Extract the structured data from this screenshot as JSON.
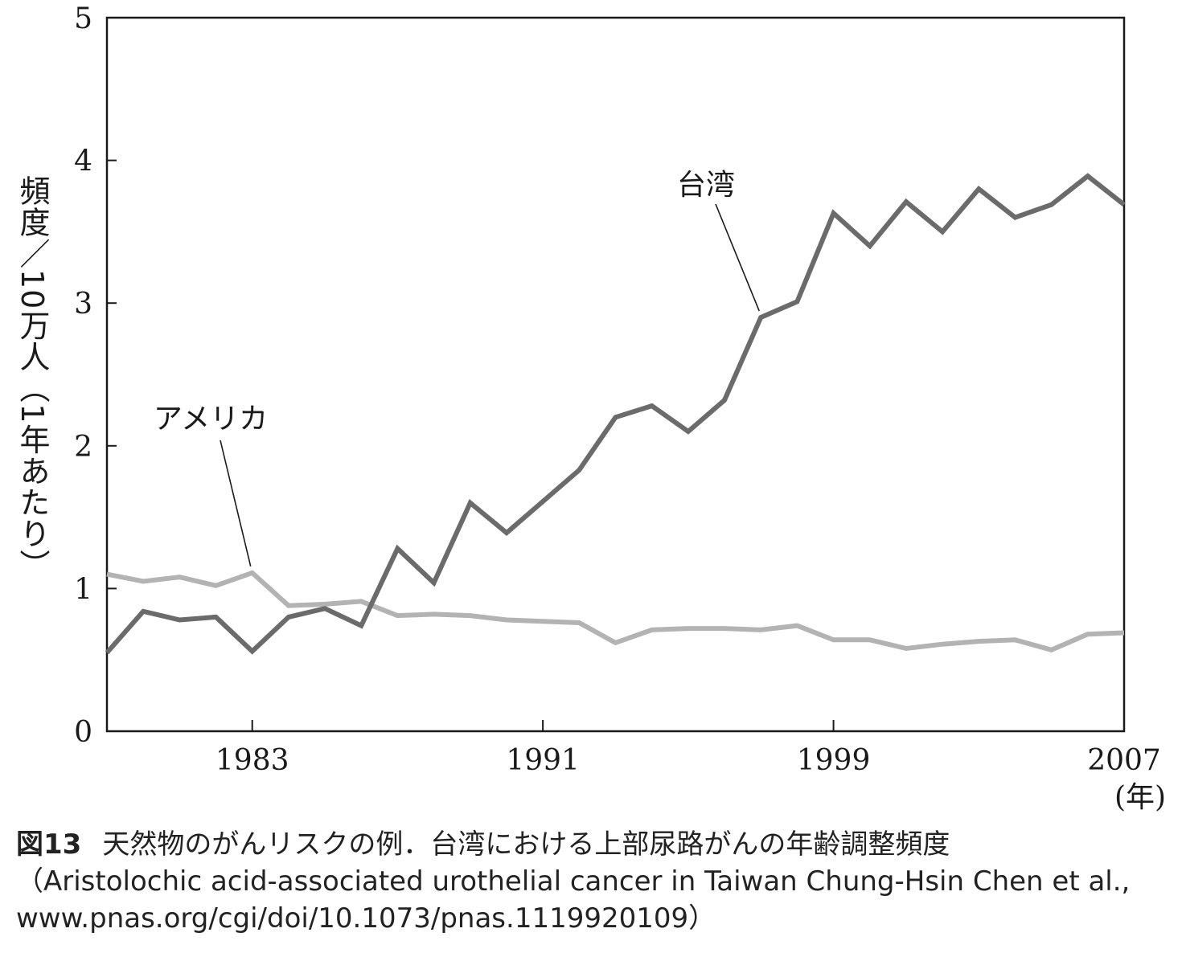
{
  "chart_data": {
    "type": "line",
    "ylabel": "頻度／10万人（1年あたり）",
    "xlabel": "(年)",
    "ylim": [
      0,
      5
    ],
    "xlim": [
      1979,
      2007
    ],
    "yticks": [
      0,
      1,
      2,
      3,
      4,
      5
    ],
    "xticks": [
      1983,
      1991,
      1999,
      2007
    ],
    "grid": false,
    "series": [
      {
        "name": "台湾",
        "color": "#6b6b6b",
        "x": [
          1979,
          1980,
          1981,
          1982,
          1983,
          1984,
          1985,
          1986,
          1987,
          1988,
          1989,
          1990,
          1991,
          1992,
          1993,
          1994,
          1995,
          1996,
          1997,
          1998,
          1999,
          2000,
          2001,
          2002,
          2003,
          2004,
          2005,
          2006,
          2007
        ],
        "values": [
          0.55,
          0.84,
          0.78,
          0.8,
          0.56,
          0.8,
          0.86,
          0.74,
          1.28,
          1.04,
          1.6,
          1.39,
          1.61,
          1.83,
          2.2,
          2.28,
          2.1,
          2.32,
          2.9,
          3.01,
          3.63,
          3.4,
          3.71,
          3.5,
          3.8,
          3.6,
          3.69,
          3.89,
          3.69
        ]
      },
      {
        "name": "アメリカ",
        "color": "#b3b3b3",
        "x": [
          1979,
          1980,
          1981,
          1982,
          1983,
          1984,
          1985,
          1986,
          1987,
          1988,
          1989,
          1990,
          1991,
          1992,
          1993,
          1994,
          1995,
          1996,
          1997,
          1998,
          1999,
          2000,
          2001,
          2002,
          2003,
          2004,
          2005,
          2006,
          2007
        ],
        "values": [
          1.1,
          1.05,
          1.08,
          1.02,
          1.11,
          0.88,
          0.89,
          0.91,
          0.81,
          0.82,
          0.81,
          0.78,
          0.77,
          0.76,
          0.62,
          0.71,
          0.72,
          0.72,
          0.71,
          0.74,
          0.64,
          0.64,
          0.58,
          0.61,
          0.63,
          0.64,
          0.57,
          0.68,
          0.69
        ]
      }
    ],
    "annotations": [
      {
        "text": "台湾",
        "series": "台湾",
        "x": 1997
      },
      {
        "text": "アメリカ",
        "series": "アメリカ",
        "x": 1983
      }
    ]
  },
  "caption": {
    "figure_number": "図13",
    "title": "天然物のがんリスクの例．台湾における上部尿路がんの年齢調整頻度",
    "source": "（Aristolochic acid-associated urothelial cancer in Taiwan Chung-Hsin Chen et al., www.pnas.org/cgi/doi/10.1073/pnas.1119920109）"
  }
}
